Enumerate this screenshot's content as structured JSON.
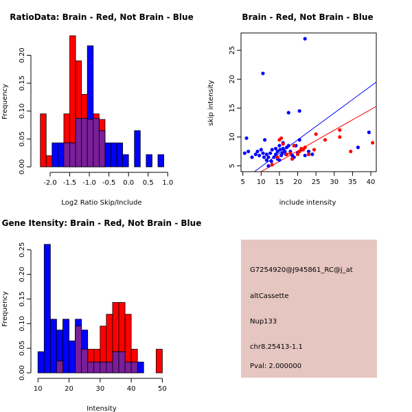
{
  "colors": {
    "brain": "#ff0000",
    "not_brain": "#0000ff",
    "overlap": "#7a1e9a",
    "info_bg": "#e6c6c0",
    "pval": "#c00000"
  },
  "chart_data": [
    {
      "id": "ratio-hist",
      "type": "bar",
      "title": "RatioData: Brain - Red, Not Brain - Blue",
      "xlabel": "Log2 Ratio Skip/Include",
      "ylabel": "Frequency",
      "xlim": [
        -2.35,
        1.1
      ],
      "ylim": [
        0,
        0.24
      ],
      "xticks": [
        -2.0,
        -1.5,
        -1.0,
        -0.5,
        0.0,
        0.5,
        1.0
      ],
      "xtick_labels": [
        "-2.0",
        "-1.5",
        "-1.0",
        "-0.5",
        "0.0",
        "0.5",
        "1.0"
      ],
      "yticks": [
        0.0,
        0.05,
        0.1,
        0.15,
        0.2
      ],
      "ytick_labels": [
        "0.00",
        "0.05",
        "0.10",
        "0.15",
        "0.20"
      ],
      "series": [
        {
          "name": "Brain",
          "color": "red",
          "bins": [
            [
              -2.25,
              -2.1,
              0.095
            ],
            [
              -2.1,
              -1.95,
              0.02
            ],
            [
              -1.65,
              -1.5,
              0.095
            ],
            [
              -1.5,
              -1.35,
              0.235
            ],
            [
              -1.35,
              -1.2,
              0.19
            ],
            [
              -1.2,
              -1.05,
              0.13
            ],
            [
              -1.05,
              -0.9,
              0.085
            ],
            [
              -0.9,
              -0.75,
              0.095
            ],
            [
              -0.75,
              -0.6,
              0.085
            ]
          ]
        },
        {
          "name": "Not Brain",
          "color": "blue",
          "bins": [
            [
              -1.95,
              -1.8,
              0.043
            ],
            [
              -1.8,
              -1.65,
              0.043
            ],
            [
              -1.65,
              -1.5,
              0.043
            ],
            [
              -1.5,
              -1.35,
              0.043
            ],
            [
              -1.35,
              -1.2,
              0.087
            ],
            [
              -1.2,
              -1.05,
              0.087
            ],
            [
              -1.05,
              -0.9,
              0.217
            ],
            [
              -0.9,
              -0.75,
              0.087
            ],
            [
              -0.75,
              -0.6,
              0.065
            ],
            [
              -0.6,
              -0.45,
              0.043
            ],
            [
              -0.45,
              -0.3,
              0.043
            ],
            [
              -0.3,
              -0.15,
              0.043
            ],
            [
              -0.15,
              0.0,
              0.022
            ],
            [
              0.15,
              0.3,
              0.065
            ],
            [
              0.45,
              0.6,
              0.022
            ],
            [
              0.75,
              0.9,
              0.022
            ]
          ]
        }
      ]
    },
    {
      "id": "scatter",
      "type": "scatter",
      "title": "Brain - Red, Not Brain - Blue",
      "xlabel": "include intensity",
      "ylabel": "skip intensity",
      "xlim": [
        4.5,
        41.5
      ],
      "ylim": [
        4.0,
        28.0
      ],
      "xticks": [
        5,
        10,
        15,
        20,
        25,
        30,
        35,
        40
      ],
      "xtick_labels": [
        "5",
        "10",
        "15",
        "20",
        "25",
        "30",
        "35",
        "40"
      ],
      "yticks": [
        5,
        10,
        15,
        20,
        25
      ],
      "ytick_labels": [
        "5",
        "10",
        "15",
        "20",
        "25"
      ],
      "fit_lines": [
        {
          "name": "Not Brain fit",
          "color": "blue",
          "x": [
            4.5,
            41.5
          ],
          "y": [
            2.3,
            19.5
          ]
        },
        {
          "name": "Brain fit",
          "color": "red",
          "x": [
            10.0,
            41.5
          ],
          "y": [
            4.0,
            15.3
          ]
        }
      ],
      "series": [
        {
          "name": "Not Brain",
          "color": "blue",
          "x": [
            5.5,
            6.0,
            6.5,
            7.5,
            8.5,
            9.0,
            9.5,
            10.0,
            10.5,
            10.8,
            11.0,
            11.5,
            11.5,
            12.0,
            12.0,
            12.5,
            12.8,
            13.0,
            13.5,
            14.0,
            14.0,
            14.5,
            14.5,
            15.0,
            15.0,
            15.2,
            15.5,
            15.8,
            16.0,
            16.0,
            16.5,
            16.8,
            17.0,
            17.5,
            18.0,
            18.5,
            19.0,
            19.5,
            20.0,
            20.5,
            21.0,
            22.0,
            23.0,
            24.0,
            36.5,
            39.5,
            10.5,
            20.5,
            17.5,
            22.0
          ],
          "y": [
            7.2,
            9.8,
            7.5,
            6.5,
            7.0,
            7.5,
            6.8,
            7.8,
            7.2,
            6.5,
            9.5,
            7.0,
            6.0,
            6.5,
            5.0,
            7.2,
            5.8,
            7.8,
            6.5,
            8.0,
            7.0,
            6.2,
            7.5,
            8.5,
            6.0,
            7.8,
            6.8,
            7.2,
            8.0,
            9.0,
            7.5,
            7.0,
            8.2,
            8.5,
            7.5,
            6.8,
            6.5,
            8.5,
            7.2,
            9.5,
            7.8,
            6.8,
            7.5,
            7.0,
            8.2,
            10.8,
            21.0,
            14.5,
            14.2,
            27.0
          ]
        },
        {
          "name": "Brain",
          "color": "red",
          "x": [
            13.0,
            15.0,
            15.5,
            16.0,
            17.0,
            18.0,
            19.0,
            20.0,
            20.5,
            21.0,
            21.5,
            22.0,
            23.0,
            24.5,
            25.0,
            27.5,
            31.5,
            31.5,
            34.5,
            40.5,
            14.5,
            18.5
          ],
          "y": [
            5.2,
            9.5,
            9.8,
            8.8,
            7.0,
            7.2,
            8.5,
            7.0,
            7.5,
            8.0,
            7.8,
            8.2,
            7.0,
            7.8,
            10.5,
            9.5,
            11.2,
            10.0,
            7.5,
            9.0,
            6.5,
            6.2
          ]
        }
      ]
    },
    {
      "id": "intensity-hist",
      "type": "bar",
      "title": "Gene Itensity: Brain - Red, Not Brain - Blue",
      "xlabel": "Intensity",
      "ylabel": "Frequency",
      "xlim": [
        9.5,
        53.0
      ],
      "ylim": [
        0,
        0.272
      ],
      "xticks": [
        10,
        20,
        30,
        40,
        50
      ],
      "xtick_labels": [
        "10",
        "20",
        "30",
        "40",
        "50"
      ],
      "yticks": [
        0.0,
        0.05,
        0.1,
        0.15,
        0.2,
        0.25
      ],
      "ytick_labels": [
        "0.00",
        "0.05",
        "0.10",
        "0.15",
        "0.20",
        "0.25"
      ],
      "series": [
        {
          "name": "Brain",
          "color": "red",
          "bins": [
            [
              16,
              18,
              0.024
            ],
            [
              22,
              24,
              0.095
            ],
            [
              24,
              26,
              0.048
            ],
            [
              26,
              28,
              0.048
            ],
            [
              28,
              30,
              0.048
            ],
            [
              30,
              32,
              0.095
            ],
            [
              32,
              34,
              0.119
            ],
            [
              34,
              36,
              0.143
            ],
            [
              36,
              38,
              0.143
            ],
            [
              38,
              40,
              0.119
            ],
            [
              40,
              42,
              0.048
            ],
            [
              48,
              50,
              0.048
            ]
          ]
        },
        {
          "name": "Not Brain",
          "color": "blue",
          "bins": [
            [
              10,
              12,
              0.043
            ],
            [
              12,
              14,
              0.261
            ],
            [
              14,
              16,
              0.109
            ],
            [
              16,
              18,
              0.087
            ],
            [
              18,
              20,
              0.109
            ],
            [
              20,
              22,
              0.065
            ],
            [
              22,
              24,
              0.109
            ],
            [
              24,
              26,
              0.087
            ],
            [
              26,
              28,
              0.022
            ],
            [
              28,
              30,
              0.022
            ],
            [
              30,
              32,
              0.022
            ],
            [
              32,
              34,
              0.022
            ],
            [
              34,
              36,
              0.043
            ],
            [
              36,
              38,
              0.043
            ],
            [
              38,
              40,
              0.022
            ],
            [
              40,
              42,
              0.022
            ],
            [
              42,
              44,
              0.022
            ]
          ]
        }
      ]
    }
  ],
  "info_panel": {
    "probe_id": "G7254920@J945861_RC@j_at",
    "event_type": "altCassette",
    "gene": "Nup133",
    "location": "chr8.25413-1.1",
    "pval": "Pval: 2.000000"
  }
}
